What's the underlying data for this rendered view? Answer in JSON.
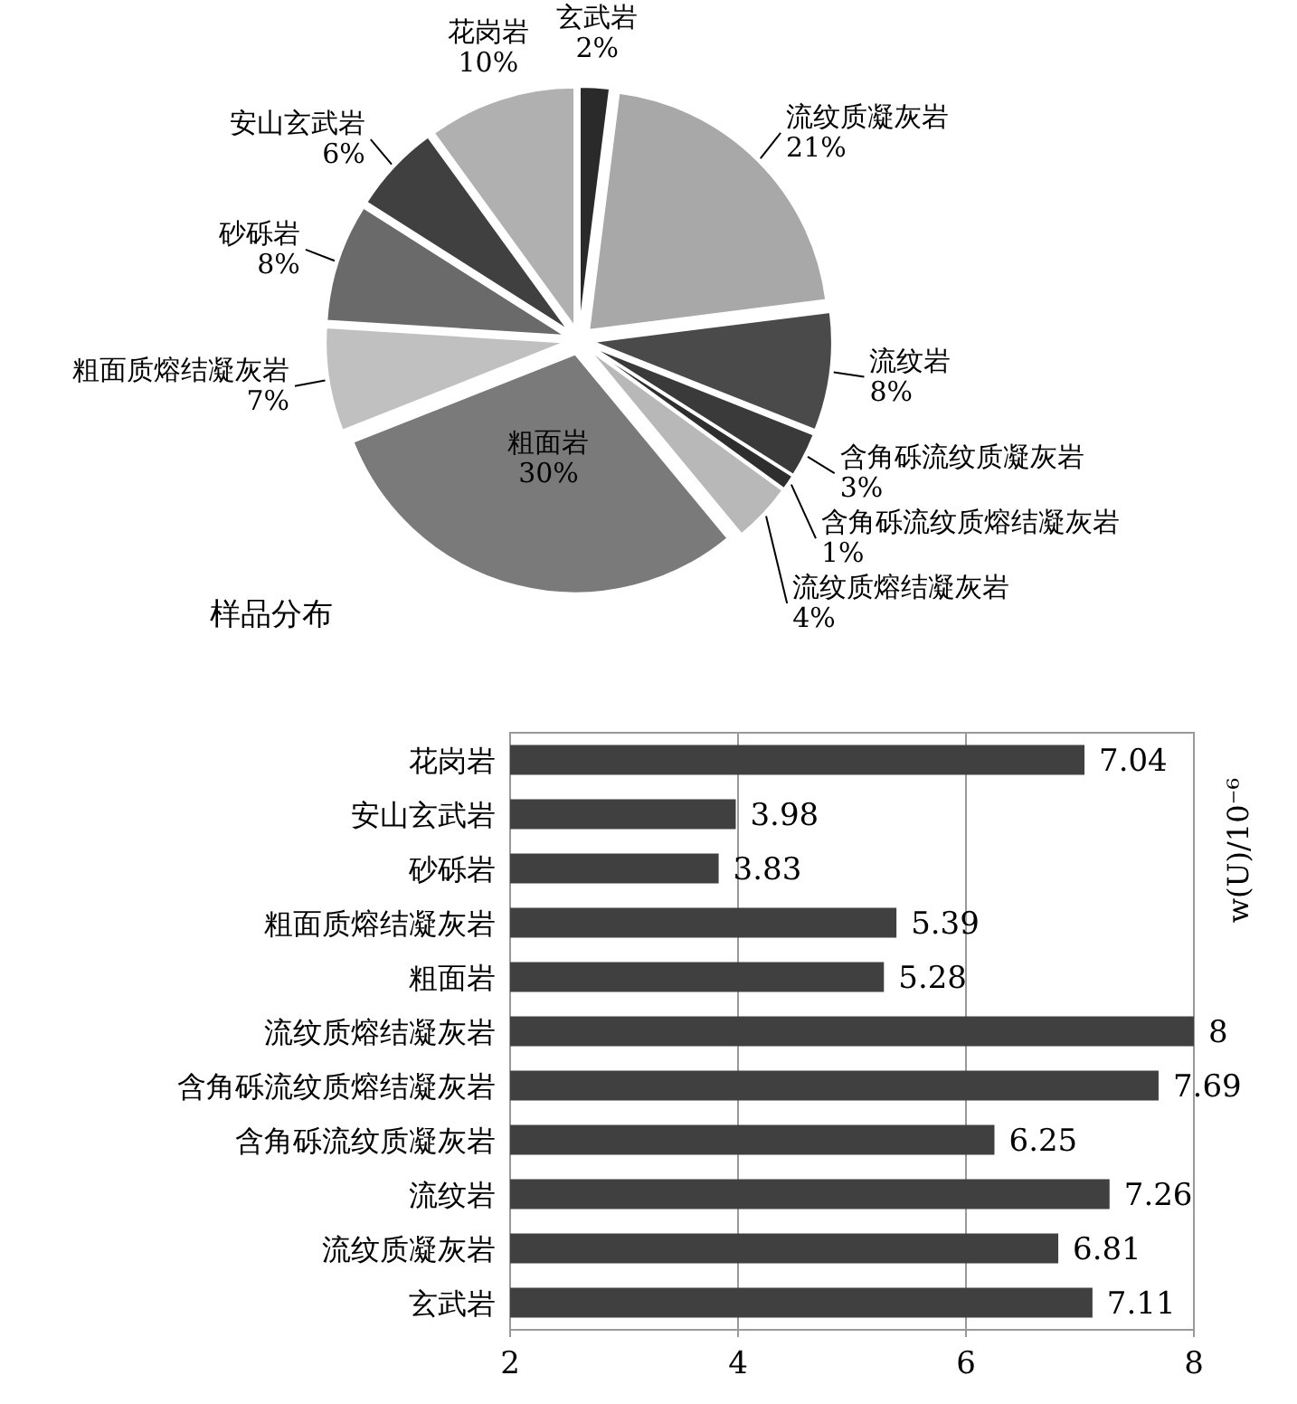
{
  "chart_data": [
    {
      "type": "pie",
      "title": "样品分布",
      "categories": [
        "玄武岩",
        "流纹质凝灰岩",
        "流纹岩",
        "含角砾流纹质凝灰岩",
        "含角砾流纹质熔结凝灰岩",
        "流纹质熔结凝灰岩",
        "粗面岩",
        "粗面质熔结凝灰岩",
        "砂砾岩",
        "安山玄武岩",
        "花岗岩"
      ],
      "values": [
        2,
        21,
        8,
        3,
        1,
        4,
        30,
        7,
        8,
        6,
        10
      ],
      "value_labels": [
        "2%",
        "21%",
        "8%",
        "3%",
        "1%",
        "4%",
        "30%",
        "7%",
        "8%",
        "6%",
        "10%"
      ],
      "colors": [
        "#2a2a2a",
        "#a8a8a8",
        "#4a4a4a",
        "#3a3a3a",
        "#2e2e2e",
        "#b8b8b8",
        "#7a7a7a",
        "#c0c0c0",
        "#6a6a6a",
        "#404040",
        "#b0b0b0"
      ]
    },
    {
      "type": "bar",
      "orientation": "horizontal",
      "y2label": "w(U)/10⁻⁶",
      "categories": [
        "花岗岩",
        "安山玄武岩",
        "砂砾岩",
        "粗面质熔结凝灰岩",
        "粗面岩",
        "流纹质熔结凝灰岩",
        "含角砾流纹质熔结凝灰岩",
        "含角砾流纹质凝灰岩",
        "流纹岩",
        "流纹质凝灰岩",
        "玄武岩"
      ],
      "values": [
        7.04,
        3.98,
        3.83,
        5.39,
        5.28,
        8,
        7.69,
        6.25,
        7.26,
        6.81,
        7.11
      ],
      "color": "#404040",
      "xlim": [
        2,
        8
      ],
      "xticks": [
        2,
        4,
        6,
        8
      ],
      "grid": "x",
      "data_labels": true
    }
  ]
}
